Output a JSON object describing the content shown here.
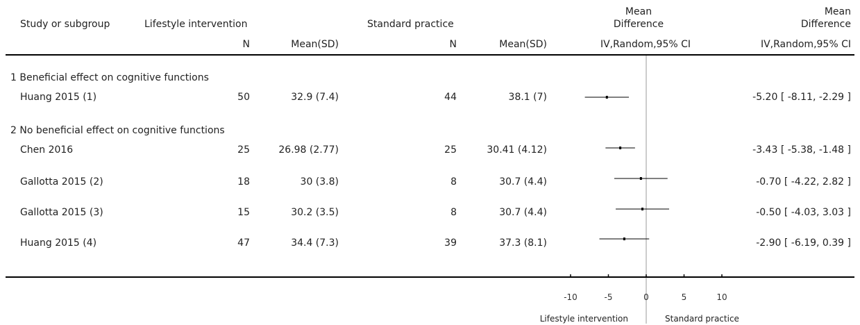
{
  "header": {
    "col_study": "Study or subgroup",
    "group1": "Lifestyle intervention",
    "group2": "Standard practice",
    "md_col_line1": "Mean",
    "md_col_line2": "Difference",
    "md_plot_line1": "Mean",
    "md_plot_line2": "Difference",
    "n_label_1": "N",
    "mean_sd_label_1": "Mean(SD)",
    "n_label_2": "N",
    "mean_sd_label_2": "Mean(SD)",
    "method_plot": "IV,Random,95% CI",
    "method_col": "IV,Random,95% CI"
  },
  "subgroups": [
    {
      "title": "1 Beneficial effect on cognitive functions",
      "studies": [
        {
          "name": "Huang 2015 (1)",
          "n1": "50",
          "mean1": "32.9 (7.4)",
          "n2": "44",
          "mean2": "38.1 (7)",
          "md": "-5.20 [ -8.11, -2.29 ]"
        }
      ]
    },
    {
      "title": "2 No beneficial effect on cognitive functions",
      "studies": [
        {
          "name": "Chen 2016",
          "n1": "25",
          "mean1": "26.98 (2.77)",
          "n2": "25",
          "mean2": "30.41 (4.12)",
          "md": "-3.43 [ -5.38, -1.48 ]"
        },
        {
          "name": "Gallotta 2015 (2)",
          "n1": "18",
          "mean1": "30 (3.8)",
          "n2": "8",
          "mean2": "30.7 (4.4)",
          "md": "-0.70 [ -4.22, 2.82 ]"
        },
        {
          "name": "Gallotta 2015 (3)",
          "n1": "15",
          "mean1": "30.2 (3.5)",
          "n2": "8",
          "mean2": "30.7 (4.4)",
          "md": "-0.50 [ -4.03, 3.03 ]"
        },
        {
          "name": "Huang 2015 (4)",
          "n1": "47",
          "mean1": "34.4 (7.3)",
          "n2": "39",
          "mean2": "37.3 (8.1)",
          "md": "-2.90 [ -6.19, 0.39 ]"
        }
      ]
    }
  ],
  "footer": {
    "favours_left": "Lifestyle intervention",
    "favours_right": "Standard practice"
  },
  "chart_data": {
    "type": "forest",
    "xlim": [
      -10,
      10
    ],
    "ticks": [
      -10,
      -5,
      0,
      5,
      10
    ],
    "tick_labels": [
      "-10",
      "-5",
      "0",
      "5",
      "10"
    ],
    "series": [
      {
        "study": "Huang 2015 (1)",
        "md": -5.2,
        "ci_low": -8.11,
        "ci_high": -2.29
      },
      {
        "study": "Chen 2016",
        "md": -3.43,
        "ci_low": -5.38,
        "ci_high": -1.48
      },
      {
        "study": "Gallotta 2015 (2)",
        "md": -0.7,
        "ci_low": -4.22,
        "ci_high": 2.82
      },
      {
        "study": "Gallotta 2015 (3)",
        "md": -0.5,
        "ci_low": -4.03,
        "ci_high": 3.03
      },
      {
        "study": "Huang 2015 (4)",
        "md": -2.9,
        "ci_low": -6.19,
        "ci_high": 0.39
      }
    ]
  }
}
